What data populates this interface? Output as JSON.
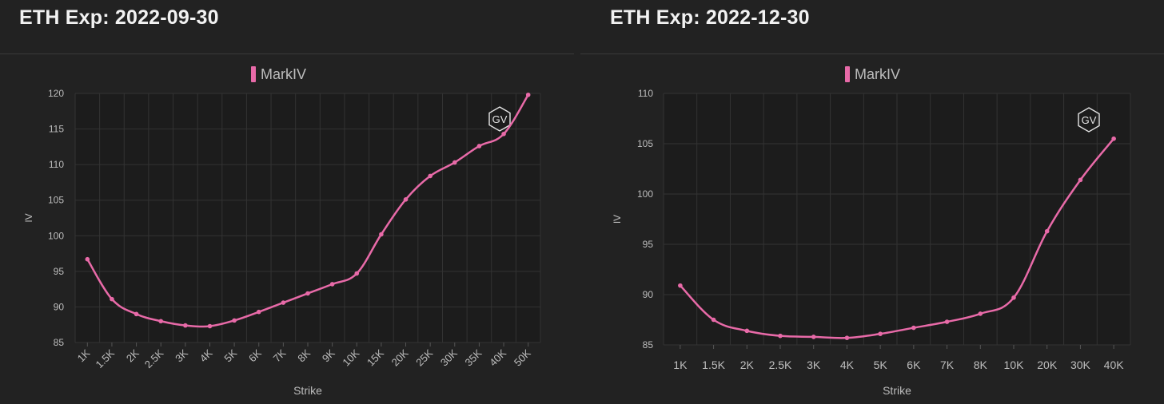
{
  "colors": {
    "background": "#222222",
    "plot_background": "#1c1c1c",
    "grid": "#333333",
    "line": "#e86aa8",
    "axis_text": "#bdbdbd"
  },
  "logo_text": "GV",
  "chart_data": [
    {
      "type": "line",
      "title": "ETH Exp: 2022-09-30",
      "xlabel": "Strike",
      "ylabel": "IV",
      "legend": "top-center",
      "grid": true,
      "ylim": [
        85,
        120
      ],
      "yticks": [
        85,
        90,
        95,
        100,
        105,
        110,
        115,
        120
      ],
      "categories": [
        "1K",
        "1.5K",
        "2K",
        "2.5K",
        "3K",
        "4K",
        "5K",
        "6K",
        "7K",
        "8K",
        "9K",
        "10K",
        "15K",
        "20K",
        "25K",
        "30K",
        "35K",
        "40K",
        "50K"
      ],
      "x_tick_rotation": -45,
      "series": [
        {
          "name": "MarkIV",
          "values": [
            96.7,
            91.1,
            89.0,
            88.0,
            87.4,
            87.3,
            88.1,
            89.3,
            90.6,
            91.9,
            93.2,
            94.7,
            100.2,
            105.1,
            108.4,
            110.3,
            112.6,
            114.3,
            119.8
          ]
        }
      ]
    },
    {
      "type": "line",
      "title": "ETH Exp: 2022-12-30",
      "xlabel": "Strike",
      "ylabel": "IV",
      "legend": "top-center",
      "grid": true,
      "ylim": [
        85,
        110
      ],
      "yticks": [
        85,
        90,
        95,
        100,
        105,
        110
      ],
      "categories": [
        "1K",
        "1.5K",
        "2K",
        "2.5K",
        "3K",
        "4K",
        "5K",
        "6K",
        "7K",
        "8K",
        "10K",
        "20K",
        "30K",
        "40K"
      ],
      "x_tick_rotation": 0,
      "series": [
        {
          "name": "MarkIV",
          "values": [
            90.9,
            87.5,
            86.4,
            85.9,
            85.8,
            85.7,
            86.1,
            86.7,
            87.3,
            88.1,
            89.7,
            96.3,
            101.4,
            105.5
          ]
        }
      ]
    }
  ]
}
